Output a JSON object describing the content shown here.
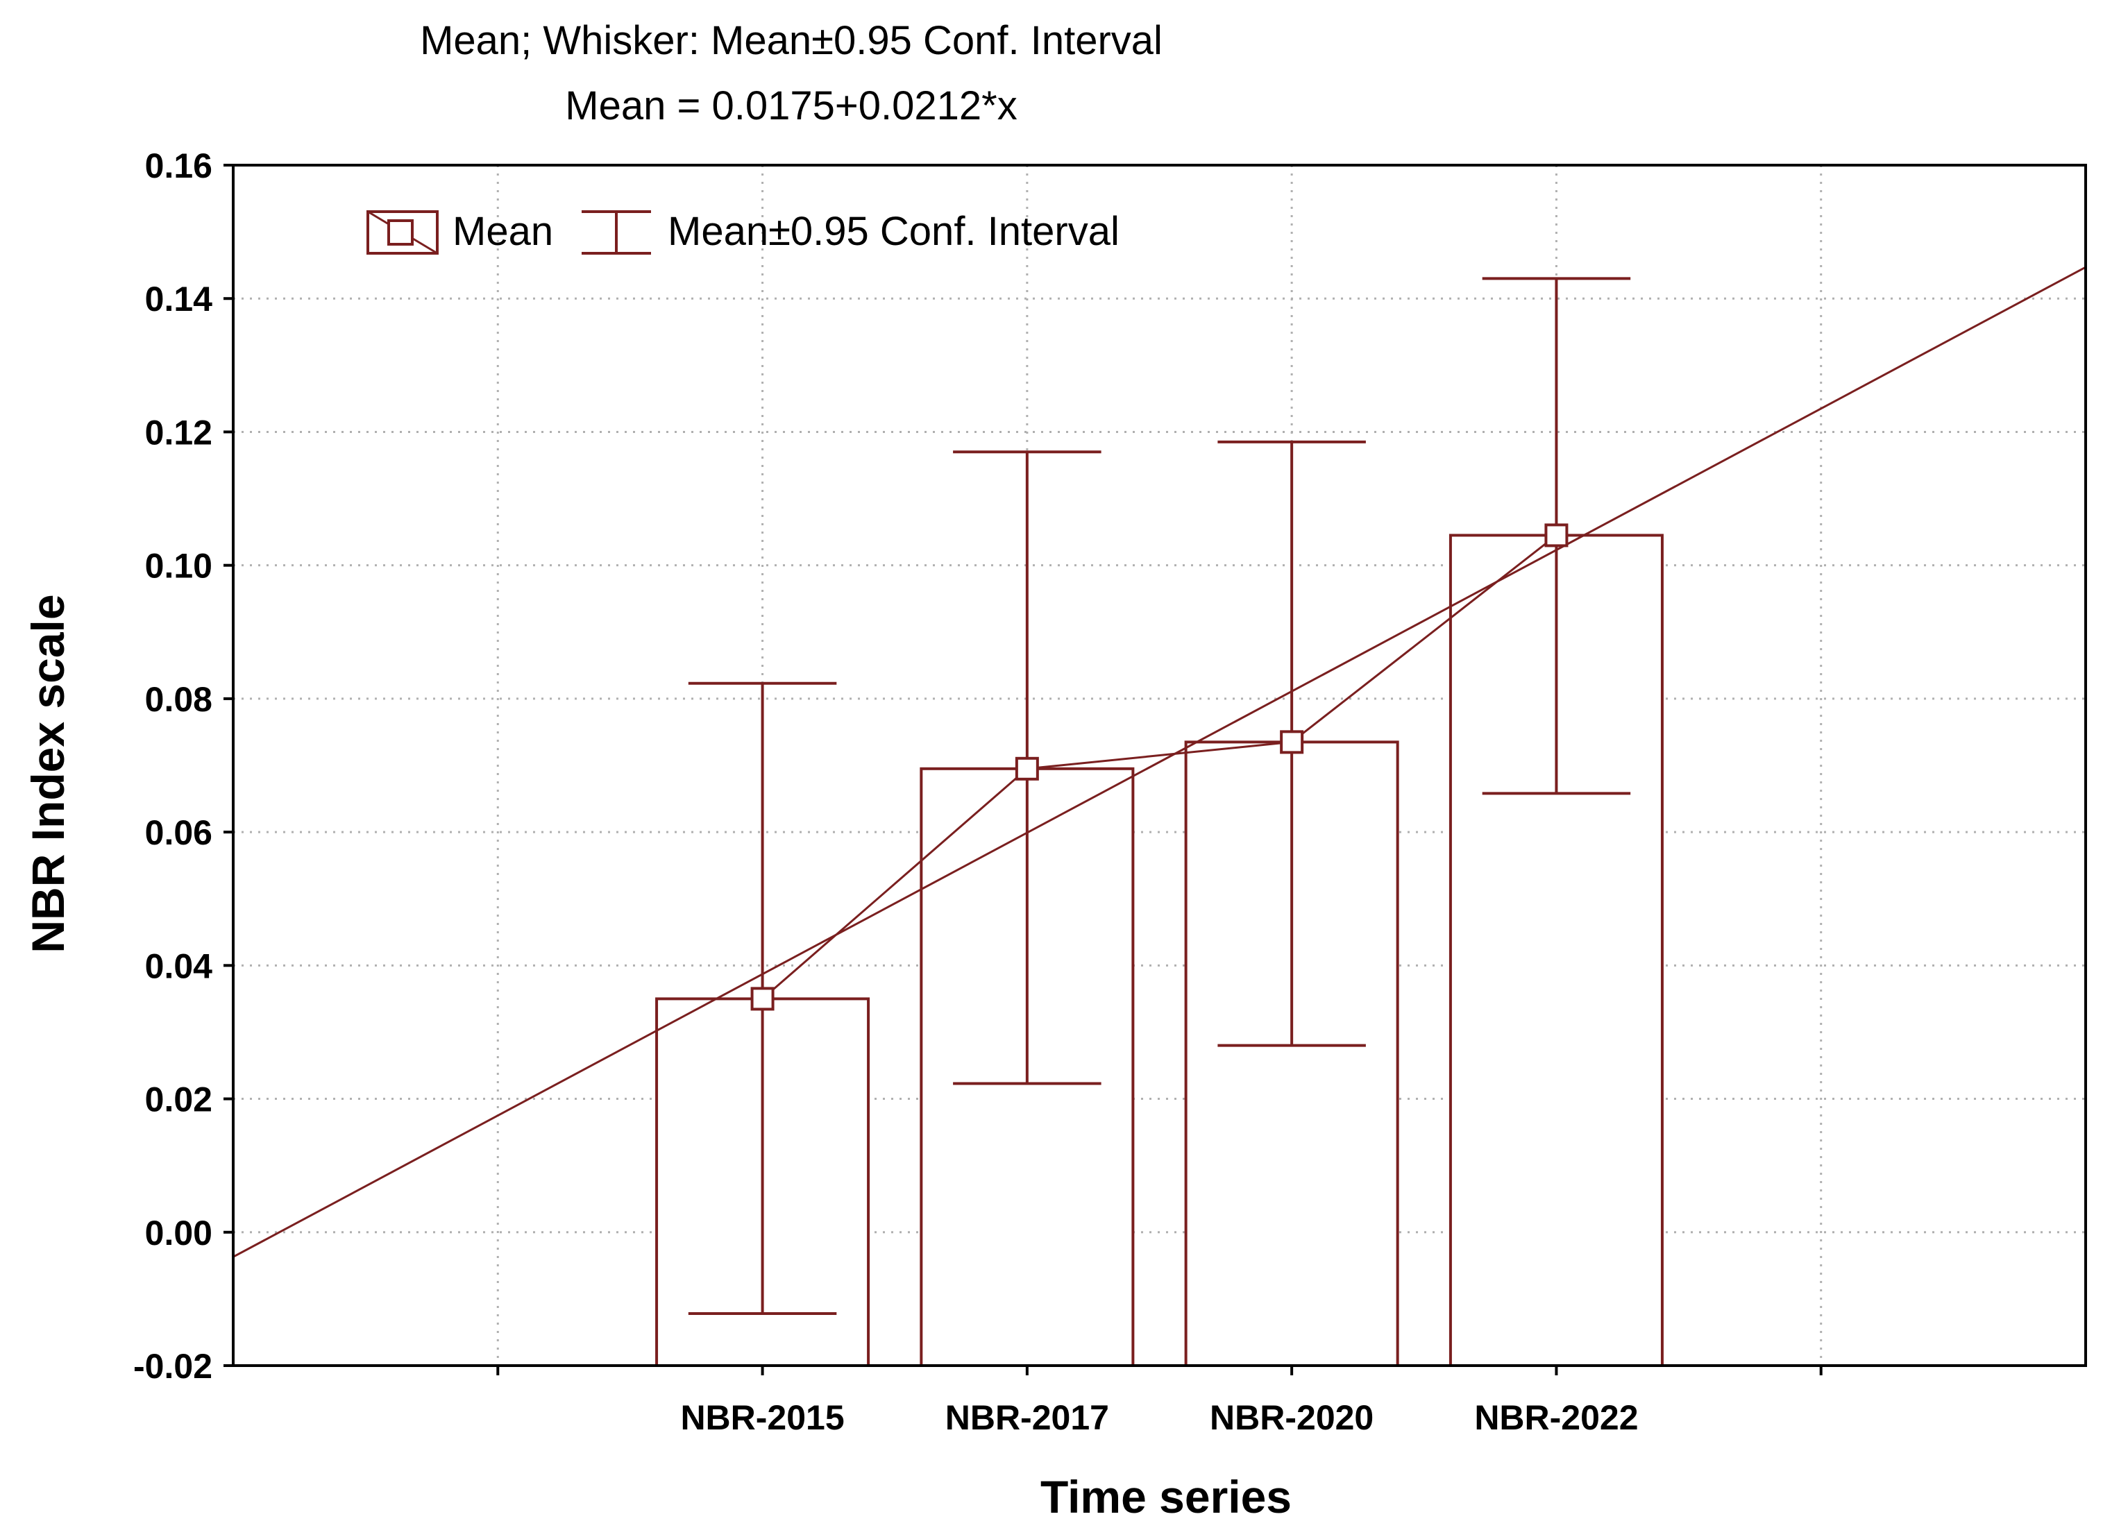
{
  "chart_data": {
    "type": "bar",
    "title": "Mean; Whisker: Mean±0.95 Conf. Interval",
    "subtitle": "Mean = 0.0175+0.0212*x",
    "xlabel": "Time series",
    "ylabel": "NBR Index scale",
    "categories": [
      "NBR-2015",
      "NBR-2017",
      "NBR-2020",
      "NBR-2022"
    ],
    "series": [
      {
        "name": "Mean",
        "values": [
          0.035,
          0.0695,
          0.0735,
          0.1045
        ],
        "ci_lower": [
          -0.0122,
          0.0223,
          0.028,
          0.0658
        ],
        "ci_upper": [
          0.0823,
          0.117,
          0.1185,
          0.143
        ]
      }
    ],
    "fit_line": {
      "intercept": 0.0175,
      "slope": 0.0212
    },
    "ylim": [
      -0.02,
      0.16
    ],
    "yticks": [
      "-0.02",
      "0.00",
      "0.02",
      "0.04",
      "0.06",
      "0.08",
      "0.10",
      "0.12",
      "0.14",
      "0.16"
    ],
    "xlim": [
      -1,
      6
    ],
    "grid": true,
    "legend": {
      "placement": "top-left",
      "items": [
        "Mean",
        "Mean±0.95 Conf. Interval"
      ]
    },
    "colors": {
      "series": "#7a1f1f",
      "grid": "#b0b0b0",
      "axis": "#000000"
    }
  }
}
